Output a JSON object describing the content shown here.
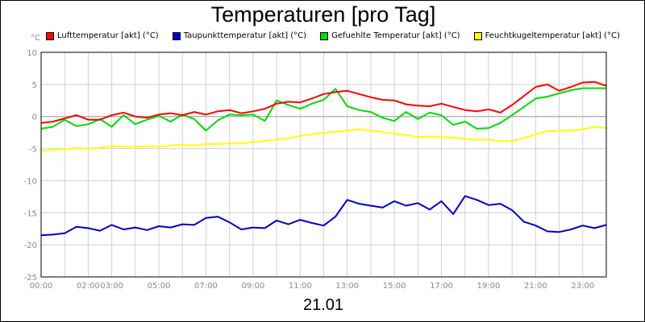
{
  "chart_data": {
    "type": "line",
    "title": "Temperaturen [pro Tag]",
    "ylabel": "°C",
    "xlabel": "21.01",
    "ylim": [
      -25,
      10
    ],
    "yticks": [
      10,
      5,
      0,
      -5,
      -10,
      -15,
      -20,
      -25
    ],
    "xlim_hours": [
      0,
      24
    ],
    "xticks": [
      {
        "h": 0,
        "label": "00:00"
      },
      {
        "h": 2,
        "label": "02:00"
      },
      {
        "h": 3,
        "label": "03:00"
      },
      {
        "h": 5,
        "label": "05:00"
      },
      {
        "h": 7,
        "label": "07:00"
      },
      {
        "h": 9,
        "label": "09:00"
      },
      {
        "h": 11,
        "label": "11:00"
      },
      {
        "h": 13,
        "label": "13:00"
      },
      {
        "h": 15,
        "label": "15:00"
      },
      {
        "h": 17,
        "label": "17:00"
      },
      {
        "h": 19,
        "label": "19:00"
      },
      {
        "h": 21,
        "label": "21:00"
      },
      {
        "h": 23,
        "label": "23:00"
      }
    ],
    "grid": true,
    "legend_position": "top",
    "series": [
      {
        "name": "Lufttemperatur [akt] (°C)",
        "color": "#ff0000",
        "x": [
          0,
          0.5,
          1,
          1.5,
          2,
          2.5,
          3,
          3.5,
          4,
          4.5,
          5,
          5.5,
          6,
          6.5,
          7,
          7.5,
          8,
          8.5,
          9,
          9.5,
          10,
          10.5,
          11,
          11.5,
          12,
          12.5,
          13,
          13.5,
          14,
          14.5,
          15,
          15.5,
          16,
          16.5,
          17,
          17.5,
          18,
          18.5,
          19,
          19.5,
          20,
          20.5,
          21,
          21.5,
          22,
          22.5,
          23,
          23.5,
          24
        ],
        "values": [
          -1.0,
          -0.8,
          -0.3,
          0.2,
          -0.5,
          -0.5,
          0.2,
          0.6,
          0.0,
          -0.2,
          0.3,
          0.5,
          0.2,
          0.7,
          0.3,
          0.8,
          1.0,
          0.5,
          0.8,
          1.2,
          2.0,
          2.3,
          2.2,
          2.8,
          3.5,
          3.8,
          4.0,
          3.5,
          3.0,
          2.6,
          2.5,
          1.9,
          1.7,
          1.6,
          2.0,
          1.5,
          1.0,
          0.8,
          1.1,
          0.6,
          1.8,
          3.2,
          4.6,
          5.0,
          4.0,
          4.6,
          5.3,
          5.4,
          4.8
        ]
      },
      {
        "name": "Taupunkttemperatur [akt] (°C)",
        "color": "#0000cc",
        "x": [
          0,
          0.5,
          1,
          1.5,
          2,
          2.5,
          3,
          3.5,
          4,
          4.5,
          5,
          5.5,
          6,
          6.5,
          7,
          7.5,
          8,
          8.5,
          9,
          9.5,
          10,
          10.5,
          11,
          11.5,
          12,
          12.5,
          13,
          13.5,
          14,
          14.5,
          15,
          15.5,
          16,
          16.5,
          17,
          17.5,
          18,
          18.5,
          19,
          19.5,
          20,
          20.5,
          21,
          21.5,
          22,
          22.5,
          23,
          23.5,
          24
        ],
        "values": [
          -18.5,
          -18.4,
          -18.2,
          -17.2,
          -17.4,
          -17.8,
          -16.9,
          -17.6,
          -17.3,
          -17.7,
          -17.1,
          -17.3,
          -16.8,
          -16.9,
          -15.8,
          -15.6,
          -16.5,
          -17.6,
          -17.3,
          -17.4,
          -16.2,
          -16.8,
          -16.1,
          -16.6,
          -17.0,
          -15.6,
          -13.0,
          -13.6,
          -13.9,
          -14.2,
          -13.2,
          -13.9,
          -13.5,
          -14.5,
          -13.2,
          -15.2,
          -12.4,
          -13.0,
          -13.8,
          -13.6,
          -14.6,
          -16.4,
          -17.0,
          -17.9,
          -18.0,
          -17.6,
          -17.0,
          -17.4,
          -16.9
        ]
      },
      {
        "name": "Gefuehlte Temperatur [akt] (°C)",
        "color": "#00dd00",
        "x": [
          0,
          0.5,
          1,
          1.5,
          2,
          2.5,
          3,
          3.5,
          4,
          4.5,
          5,
          5.5,
          6,
          6.5,
          7,
          7.5,
          8,
          8.5,
          9,
          9.5,
          10,
          10.5,
          11,
          11.5,
          12,
          12.5,
          13,
          13.5,
          14,
          14.5,
          15,
          15.5,
          16,
          16.5,
          17,
          17.5,
          18,
          18.5,
          19,
          19.5,
          20,
          20.5,
          21,
          21.5,
          22,
          22.5,
          23,
          23.5,
          24
        ],
        "values": [
          -1.9,
          -1.6,
          -0.5,
          -1.5,
          -1.2,
          -0.4,
          -1.6,
          0.2,
          -1.2,
          -0.5,
          0.1,
          -0.8,
          0.3,
          -0.4,
          -2.2,
          -0.6,
          0.3,
          0.2,
          0.3,
          -0.7,
          2.5,
          1.8,
          1.2,
          2.0,
          2.6,
          4.3,
          1.6,
          1.0,
          0.7,
          -0.2,
          -0.7,
          0.7,
          -0.4,
          0.6,
          0.2,
          -1.3,
          -0.8,
          -1.9,
          -1.8,
          -1.0,
          0.2,
          1.5,
          2.8,
          3.1,
          3.6,
          4.1,
          4.4,
          4.4,
          4.4
        ]
      },
      {
        "name": "Feuchtkugeltemperatur [akt] (°C)",
        "color": "#ffff00",
        "x": [
          0,
          0.5,
          1,
          1.5,
          2,
          2.5,
          3,
          3.5,
          4,
          4.5,
          5,
          5.5,
          6,
          6.5,
          7,
          7.5,
          8,
          8.5,
          9,
          9.5,
          10,
          10.5,
          11,
          11.5,
          12,
          12.5,
          13,
          13.5,
          14,
          14.5,
          15,
          15.5,
          16,
          16.5,
          17,
          17.5,
          18,
          18.5,
          19,
          19.5,
          20,
          20.5,
          21,
          21.5,
          22,
          22.5,
          23,
          23.5,
          24
        ],
        "values": [
          -5.4,
          -5.2,
          -5.1,
          -4.9,
          -5.0,
          -4.9,
          -4.6,
          -4.7,
          -4.7,
          -4.6,
          -4.7,
          -4.5,
          -4.4,
          -4.5,
          -4.3,
          -4.3,
          -4.2,
          -4.2,
          -4.0,
          -3.8,
          -3.6,
          -3.4,
          -3.0,
          -2.8,
          -2.5,
          -2.4,
          -2.2,
          -2.0,
          -2.2,
          -2.4,
          -2.7,
          -2.9,
          -3.2,
          -3.1,
          -3.2,
          -3.3,
          -3.5,
          -3.6,
          -3.6,
          -3.9,
          -3.8,
          -3.4,
          -2.8,
          -2.3,
          -2.2,
          -2.2,
          -2.0,
          -1.6,
          -1.8
        ]
      }
    ]
  }
}
